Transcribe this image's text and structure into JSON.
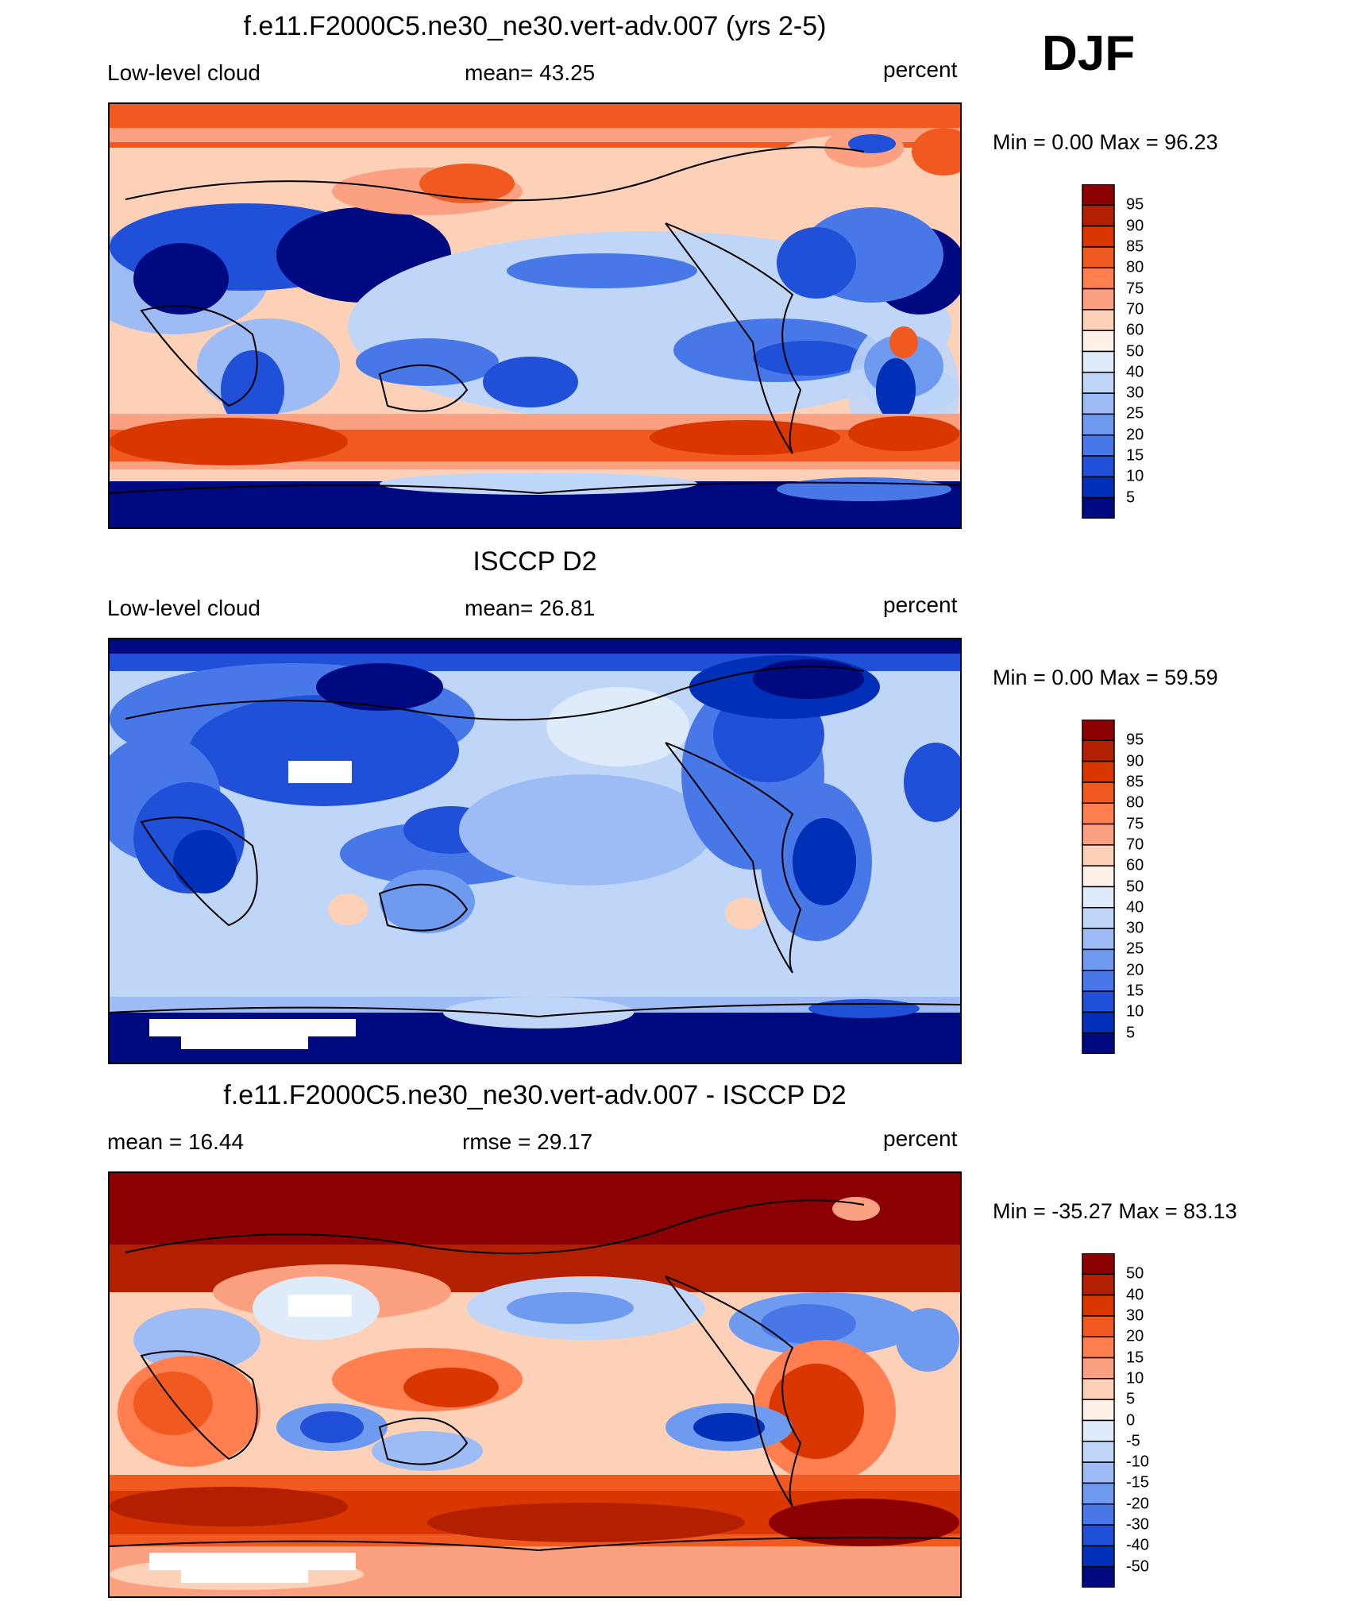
{
  "season": "DJF",
  "panels": [
    {
      "title": "f.e11.F2000C5.ne30_ne30.vert-adv.007 (yrs 2-5)",
      "left_label": "Low-level cloud",
      "center_label": "mean=  43.25",
      "right_label": "percent",
      "minmax": "Min =    0.00 Max =  96.23",
      "colorbar_levels": [
        "95",
        "90",
        "85",
        "80",
        "75",
        "70",
        "60",
        "50",
        "40",
        "30",
        "25",
        "20",
        "15",
        "10",
        "5"
      ],
      "colors": [
        "#8b0000",
        "#b22000",
        "#d93600",
        "#f05a20",
        "#ff7f50",
        "#fba080",
        "#fdd1b8",
        "#fff0e8",
        "#deebfb",
        "#c0d6f8",
        "#9dbcf5",
        "#6e9bf0",
        "#4878e8",
        "#2050d8",
        "#0030b8",
        "#000a80"
      ]
    },
    {
      "title": "ISCCP D2",
      "left_label": "Low-level cloud",
      "center_label": "mean=  26.81",
      "right_label": "percent",
      "minmax": "Min =    0.00 Max =  59.59",
      "colorbar_levels": [
        "95",
        "90",
        "85",
        "80",
        "75",
        "70",
        "60",
        "50",
        "40",
        "30",
        "25",
        "20",
        "15",
        "10",
        "5"
      ],
      "colors": [
        "#8b0000",
        "#b22000",
        "#d93600",
        "#f05a20",
        "#ff7f50",
        "#fba080",
        "#fdd1b8",
        "#fff0e8",
        "#deebfb",
        "#c0d6f8",
        "#9dbcf5",
        "#6e9bf0",
        "#4878e8",
        "#2050d8",
        "#0030b8",
        "#000a80"
      ]
    },
    {
      "title": "f.e11.F2000C5.ne30_ne30.vert-adv.007 - ISCCP D2",
      "left_label": "mean =  16.44",
      "center_label": "rmse =  29.17",
      "right_label": "percent",
      "minmax": "Min = -35.27 Max =  83.13",
      "colorbar_levels": [
        "50",
        "40",
        "30",
        "20",
        "15",
        "10",
        "5",
        "0",
        "-5",
        "-10",
        "-15",
        "-20",
        "-30",
        "-40",
        "-50"
      ],
      "colors": [
        "#8b0000",
        "#b22000",
        "#d93600",
        "#f05a20",
        "#ff7f50",
        "#fba080",
        "#fdd1b8",
        "#fff0e8",
        "#deebfb",
        "#c0d6f8",
        "#9dbcf5",
        "#6e9bf0",
        "#4878e8",
        "#2050d8",
        "#0030b8",
        "#000a80"
      ]
    }
  ]
}
